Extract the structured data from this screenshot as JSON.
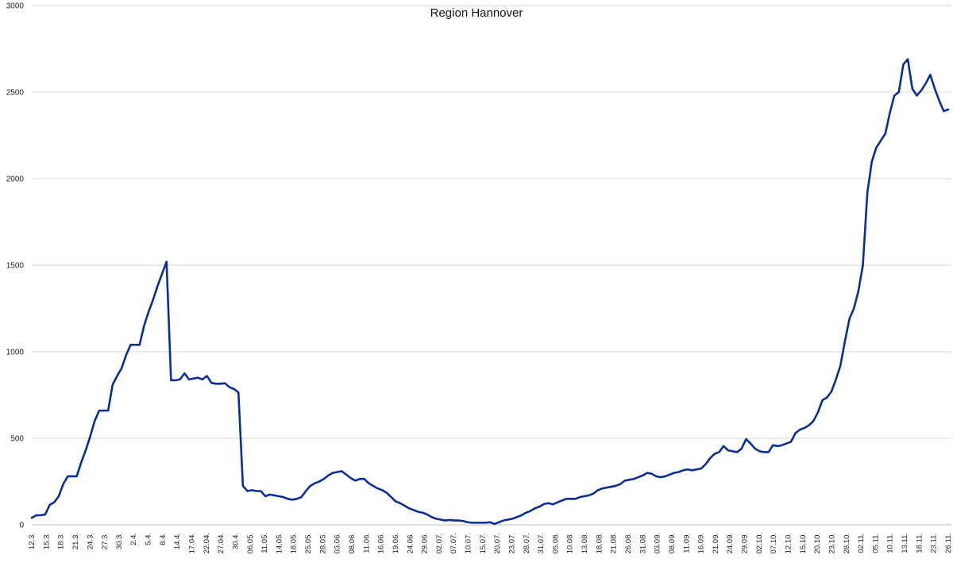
{
  "chart_data": {
    "type": "line",
    "title": "Region Hannover",
    "xlabel": "",
    "ylabel": "",
    "ylim": [
      0,
      3000
    ],
    "yticks": [
      0,
      500,
      1000,
      1500,
      2000,
      2500,
      3000
    ],
    "grid": true,
    "legend": "none",
    "x_tick_labels": [
      "12.3.",
      "15.3.",
      "18.3.",
      "21.3.",
      "24.3.",
      "27.3.",
      "30.3.",
      "2.4.",
      "5.4.",
      "8.4.",
      "14.4.",
      "17.04.",
      "22.04.",
      "27.04.",
      "30.4.",
      "06.05.",
      "11.05.",
      "14.05.",
      "18.05.",
      "25.05.",
      "28.05.",
      "03.06.",
      "08.06.",
      "11.06.",
      "16.06.",
      "19.06.",
      "24.06.",
      "29.06.",
      "02.07.",
      "07.07.",
      "10.07.",
      "15.07.",
      "20.07.",
      "23.07.",
      "28.07.",
      "31.07.",
      "05.08.",
      "10.08.",
      "13.08.",
      "18.08.",
      "21.08.",
      "26.08.",
      "31.08.",
      "03.09.",
      "08.09.",
      "11.09.",
      "16.09.",
      "21.09.",
      "24.09.",
      "29.09.",
      "02.10.",
      "07.10.",
      "12.10.",
      "15.10.",
      "20.10.",
      "23.10.",
      "28.10.",
      "02.11.",
      "05.11.",
      "10.11.",
      "13.11.",
      "18.11.",
      "23.11.",
      "26.11."
    ],
    "series": [
      {
        "color": "#0a2d96",
        "values": [
          40,
          55,
          55,
          60,
          115,
          130,
          165,
          235,
          280,
          280,
          280,
          360,
          430,
          510,
          600,
          660,
          660,
          660,
          810,
          860,
          905,
          980,
          1040,
          1040,
          1040,
          1150,
          1230,
          1300,
          1380,
          1450,
          1520,
          835,
          835,
          840,
          875,
          840,
          845,
          850,
          840,
          860,
          820,
          815,
          815,
          818,
          795,
          785,
          765,
          225,
          195,
          200,
          195,
          195,
          165,
          175,
          170,
          165,
          160,
          150,
          145,
          150,
          160,
          195,
          225,
          240,
          250,
          265,
          285,
          300,
          305,
          310,
          290,
          270,
          255,
          265,
          265,
          240,
          225,
          210,
          200,
          185,
          160,
          135,
          125,
          110,
          95,
          85,
          75,
          70,
          60,
          45,
          35,
          30,
          25,
          28,
          25,
          25,
          22,
          15,
          12,
          12,
          12,
          12,
          15,
          5,
          15,
          25,
          30,
          35,
          45,
          55,
          70,
          80,
          95,
          105,
          120,
          125,
          118,
          130,
          140,
          150,
          150,
          150,
          160,
          165,
          170,
          180,
          200,
          210,
          215,
          220,
          225,
          235,
          255,
          260,
          265,
          275,
          285,
          300,
          295,
          280,
          275,
          280,
          290,
          300,
          305,
          315,
          320,
          315,
          320,
          325,
          350,
          385,
          410,
          420,
          455,
          430,
          425,
          420,
          440,
          495,
          470,
          440,
          425,
          420,
          420,
          460,
          455,
          460,
          470,
          480,
          530,
          550,
          560,
          575,
          600,
          650,
          720,
          735,
          770,
          840,
          920,
          1060,
          1190,
          1250,
          1350,
          1500,
          1920,
          2100,
          2180,
          2220,
          2260,
          2380,
          2480,
          2500,
          2660,
          2690,
          2520,
          2480,
          2510,
          2550,
          2600,
          2520,
          2450,
          2390,
          2400
        ]
      }
    ]
  }
}
